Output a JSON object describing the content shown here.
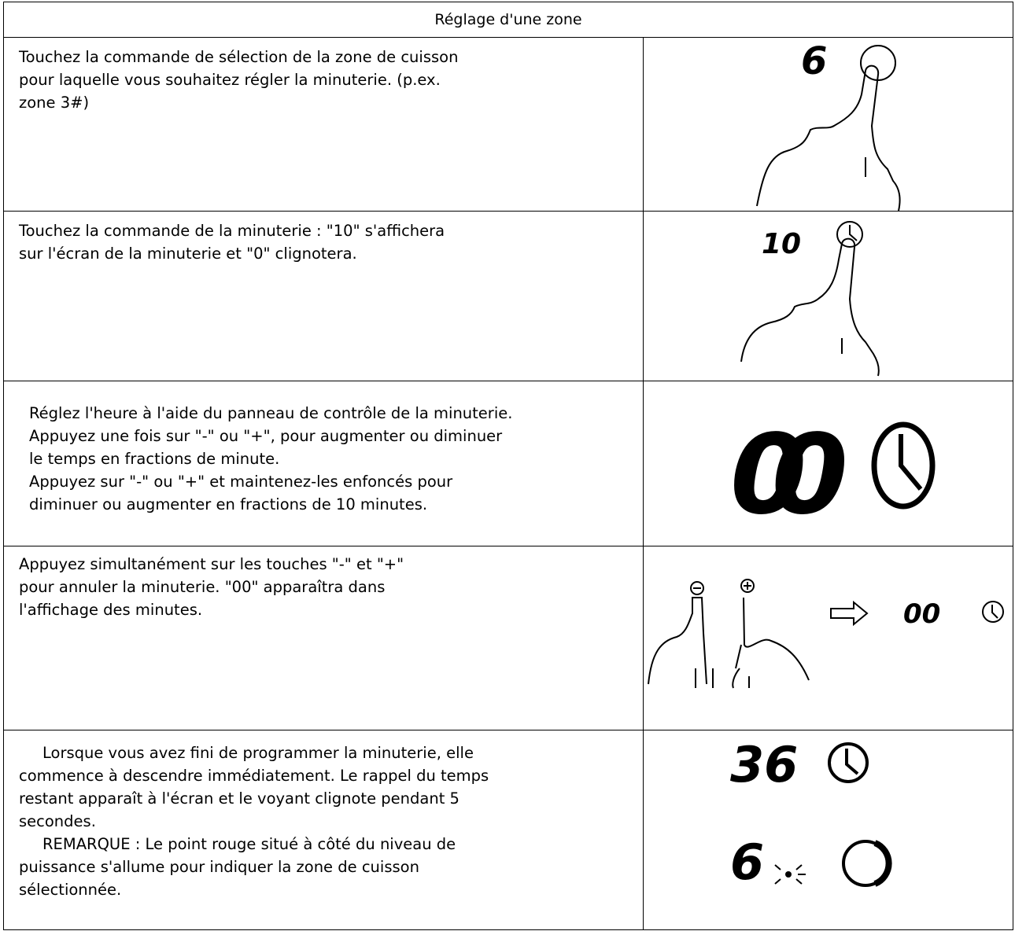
{
  "table": {
    "header": "Réglage d'une zone",
    "rows": [
      {
        "lines": [
          "Touchez la commande de sélection de la zone de cuisson",
          "pour laquelle vous souhaitez régler la minuterie. (p.ex.",
          "zone 3#)"
        ],
        "display": [
          "6"
        ]
      },
      {
        "lines": [
          "Touchez la commande de la minuterie : \"10\" s'affichera",
          "sur l'écran de la minuterie et \"0\" clignotera."
        ],
        "display": [
          "10"
        ]
      },
      {
        "lines": [
          "Réglez l'heure à l'aide du panneau de contrôle de la minuterie.",
          "Appuyez une fois sur \"-\" ou \"+\", pour augmenter ou diminuer",
          "le temps en fractions de minute.",
          "Appuyez sur \"-\" ou \"+\" et maintenez-les enfoncés pour",
          "diminuer ou augmenter en fractions de 10 minutes."
        ],
        "display": [
          "00"
        ]
      },
      {
        "lines": [
          "Appuyez simultanément sur les touches \"-\" et \"+\"",
          "pour annuler la minuterie. \"00\" apparaîtra dans",
          "l'affichage des minutes."
        ],
        "display": [
          "00"
        ]
      },
      {
        "lines": [
          "Lorsque vous avez fini de programmer la minuterie, elle",
          "commence à descendre immédiatement. Le rappel du temps",
          "restant apparaît à l'écran et le voyant clignote pendant 5",
          "secondes.",
          "REMARQUE : Le point rouge situé à côté du niveau de",
          "puissance s'allume pour indiquer la zone de cuisson",
          "sélectionnée."
        ],
        "display": [
          "36",
          "6"
        ]
      }
    ]
  }
}
